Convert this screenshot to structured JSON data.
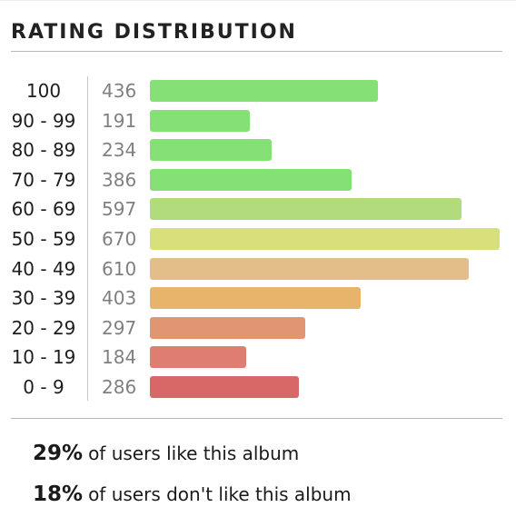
{
  "title": "RATING DISTRIBUTION",
  "chart_data": {
    "type": "bar",
    "orientation": "horizontal",
    "categories": [
      "100",
      "90 - 99",
      "80 - 89",
      "70 - 79",
      "60 - 69",
      "50 - 59",
      "40 - 49",
      "30 - 39",
      "20 - 29",
      "10 - 19",
      "0 - 9"
    ],
    "values": [
      436,
      191,
      234,
      386,
      597,
      670,
      610,
      403,
      297,
      184,
      286
    ],
    "colors": [
      "#85e076",
      "#85e076",
      "#85e076",
      "#85e076",
      "#b2dc7b",
      "#d8e07b",
      "#e2bf88",
      "#e6b46b",
      "#e29572",
      "#e07d73",
      "#d86868"
    ]
  },
  "stats": {
    "like": {
      "percent": "29%",
      "text": "of users like this album"
    },
    "dislike": {
      "percent": "18%",
      "text": "of users don't like this album"
    }
  }
}
